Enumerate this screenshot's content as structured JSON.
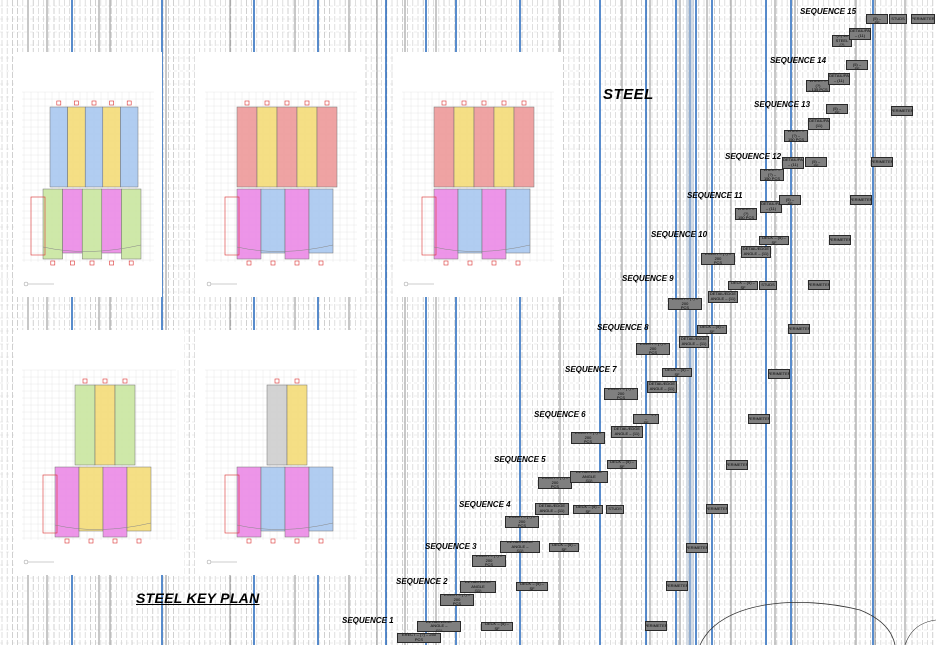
{
  "titles": {
    "steel": "STEEL",
    "key_plan": "STEEL KEY PLAN"
  },
  "colors": {
    "blue": "#a9c8f0",
    "yellow": "#f5dc78",
    "red": "#ee9a9a",
    "magenta": "#ec8ae6",
    "green": "#c9e6a0",
    "gray": "#cfcfcf",
    "task_fill": "#7f7f7f",
    "schedule_blue_line": "#2f6fc0"
  },
  "key_plans": [
    {
      "zones_top": [
        "blue",
        "yellow",
        "blue",
        "yellow",
        "blue"
      ],
      "zones_bottom": [
        "green",
        "magenta",
        "green",
        "magenta",
        "green"
      ]
    },
    {
      "zones_top": [
        "red",
        "yellow",
        "red",
        "yellow",
        "red"
      ],
      "zones_bottom": [
        "magenta",
        "blue",
        "magenta",
        "blue"
      ]
    },
    {
      "zones_top": [
        "red",
        "yellow",
        "red",
        "yellow",
        "red"
      ],
      "zones_bottom": [
        "magenta",
        "blue",
        "magenta",
        "blue"
      ]
    },
    {
      "zones_top": [
        "green",
        "yellow",
        "green"
      ],
      "zones_bottom": [
        "magenta",
        "yellow",
        "magenta",
        "yellow"
      ]
    },
    {
      "zones_top": [
        "gray",
        "yellow"
      ],
      "zones_bottom": [
        "magenta",
        "blue",
        "magenta",
        "blue"
      ]
    }
  ],
  "sequences": [
    {
      "label": "SEQUENCE 1"
    },
    {
      "label": "SEQUENCE 2"
    },
    {
      "label": "SEQUENCE 3"
    },
    {
      "label": "SEQUENCE 4"
    },
    {
      "label": "SEQUENCE 5"
    },
    {
      "label": "SEQUENCE 6"
    },
    {
      "label": "SEQUENCE 7"
    },
    {
      "label": "SEQUENCE 8"
    },
    {
      "label": "SEQUENCE 9"
    },
    {
      "label": "SEQUENCE 10"
    },
    {
      "label": "SEQUENCE 11"
    },
    {
      "label": "SEQUENCE 12"
    },
    {
      "label": "SEQUENCE 13"
    },
    {
      "label": "SEQUENCE 14"
    },
    {
      "label": "SEQUENCE 15"
    }
  ],
  "tasks": [
    {
      "id": "t1",
      "text": "ERECT – (?) – 250 PCS"
    },
    {
      "id": "t2",
      "text": "DETAIL/EDGE ANGLE –\n(11)"
    },
    {
      "id": "t3",
      "text": "DECK – (5) – SF"
    },
    {
      "id": "t4",
      "text": "PERIMETER"
    },
    {
      "id": "t5",
      "text": "ERECT – (?) – 200\nPCS"
    },
    {
      "id": "t6",
      "text": "DETAIL/EDGE ANGLE\n(11)"
    },
    {
      "id": "t7",
      "text": "DECK – (5) – SF"
    },
    {
      "id": "t8",
      "text": "PERIMETER"
    },
    {
      "id": "t9",
      "text": "ERECT – (?) – 200\nPCS"
    },
    {
      "id": "t10",
      "text": "DETAIL/EDGE ANGLE –\n(11)"
    },
    {
      "id": "t11",
      "text": "DECK – (5) – SF"
    },
    {
      "id": "t12",
      "text": "PERIMETER"
    },
    {
      "id": "t13",
      "text": "ERECT – (?) – 200\nPCS"
    },
    {
      "id": "t14",
      "text": "DETAIL/EDGE\nANGLE – (11)"
    },
    {
      "id": "t15",
      "text": "DECK – (5) – SF"
    },
    {
      "id": "t16",
      "text": "STUDS"
    },
    {
      "id": "t17",
      "text": "PERIMETER"
    },
    {
      "id": "t18",
      "text": "ERECT – (?) – 200\nPCS"
    },
    {
      "id": "t19",
      "text": "DETAIL/EDGE ANGLE\n(11)"
    },
    {
      "id": "t20",
      "text": "DECK – (5) – SF"
    },
    {
      "id": "t21",
      "text": "PERIMETER"
    },
    {
      "id": "t22",
      "text": "ERECT – (?) – 200\nPCS"
    },
    {
      "id": "t23",
      "text": "DETAIL/EDGE\nANGLE – (11)"
    },
    {
      "id": "t24",
      "text": "DECK – (5) –\nSF"
    },
    {
      "id": "t25",
      "text": "PERIMETER"
    },
    {
      "id": "t26",
      "text": "ERECT – (?) – 200\nPCS"
    },
    {
      "id": "t27",
      "text": "DETAIL/EDGE\nANGLE – (11)"
    },
    {
      "id": "t28",
      "text": "DECK – (5) – SF"
    },
    {
      "id": "t29",
      "text": "PERIMETER"
    },
    {
      "id": "t30",
      "text": "ERECT – (?) – 200\nPCS"
    },
    {
      "id": "t31",
      "text": "DETAIL/EDGE\nANGLE – (11)"
    },
    {
      "id": "t32",
      "text": "DECK – (5) – SF"
    },
    {
      "id": "t33",
      "text": "PERIMETER"
    },
    {
      "id": "t34",
      "text": "ERECT – (?) – 200\nPCS"
    },
    {
      "id": "t35",
      "text": "DETAIL/EDGE\nANGLE – (11)"
    },
    {
      "id": "t36",
      "text": "DECK – (5) – SF"
    },
    {
      "id": "t37",
      "text": "STUDS"
    },
    {
      "id": "t38",
      "text": "PERIMETER"
    },
    {
      "id": "t39",
      "text": "ERECT – (?) – 200\nPCS"
    },
    {
      "id": "t40",
      "text": "DETAIL/EDGE\nANGLE – (11)"
    },
    {
      "id": "t41",
      "text": "DECK – (5) – SF"
    },
    {
      "id": "t42",
      "text": "PERIMETER"
    },
    {
      "id": "t43",
      "text": "ERECT – (?)\n150 PCS"
    },
    {
      "id": "t44",
      "text": "DETAIL/PA\n– (11)"
    },
    {
      "id": "t45",
      "text": "DECK – (5) –\nSF"
    },
    {
      "id": "t46",
      "text": "PERIMETER"
    },
    {
      "id": "t47",
      "text": "ERECT – (?) –\n150 PCS"
    },
    {
      "id": "t48",
      "text": "DETAIL/PA\n– (11)"
    },
    {
      "id": "t49",
      "text": "DECK – (5) –\nSF"
    },
    {
      "id": "t50",
      "text": "PERIMETER"
    },
    {
      "id": "t51",
      "text": "ERECT – (?) –\n150 PCS"
    },
    {
      "id": "t52",
      "text": "DETAIL/PA\n(11)"
    },
    {
      "id": "t53",
      "text": "DECK – (5) –\nSF"
    },
    {
      "id": "t54",
      "text": "PERIMETER"
    },
    {
      "id": "t55",
      "text": "ERECT – (?)\n– 135 PCS"
    },
    {
      "id": "t56",
      "text": "DETAIL/PA\n– (11)"
    },
    {
      "id": "t57",
      "text": "DECK – (5) –\nSF"
    },
    {
      "id": "t58",
      "text": "(R) 15\nSTEEL (?)"
    },
    {
      "id": "t59",
      "text": "DETAIL/PA\n– (11)"
    },
    {
      "id": "t60",
      "text": "DECK – (5) –\nSF"
    },
    {
      "id": "t61",
      "text": "STUDS"
    },
    {
      "id": "t62",
      "text": "PERIMETER"
    }
  ]
}
